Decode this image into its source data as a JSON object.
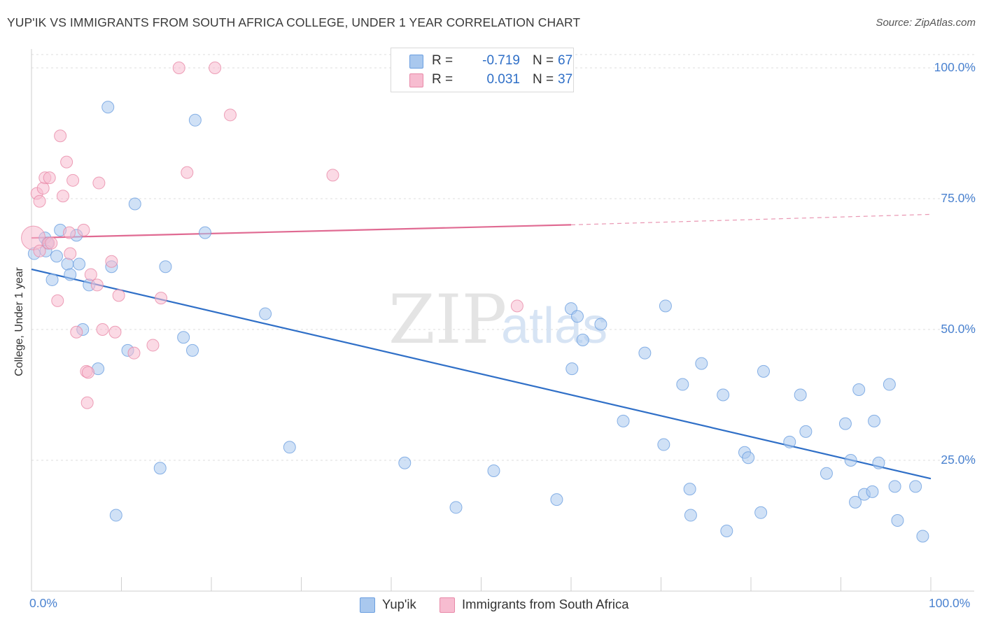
{
  "title": "YUP'IK VS IMMIGRANTS FROM SOUTH AFRICA COLLEGE, UNDER 1 YEAR CORRELATION CHART",
  "source": "Source: ZipAtlas.com",
  "watermark": {
    "zip": "ZIP",
    "atlas": "atlas"
  },
  "legend": {
    "rows": [
      {
        "label": "R =",
        "r": "-0.719",
        "n_label": "N =",
        "n": "67",
        "color": "#a9c8ee",
        "border": "#6b9fe0"
      },
      {
        "label": "R =",
        "r": "0.031",
        "n_label": "N =",
        "n": "37",
        "color": "#f7bcd0",
        "border": "#e889a8"
      }
    ]
  },
  "bottom_legend": [
    {
      "label": "Yup'ik",
      "color": "#a9c8ee",
      "border": "#6b9fe0"
    },
    {
      "label": "Immigrants from South Africa",
      "color": "#f7bcd0",
      "border": "#e889a8"
    }
  ],
  "chart_data": {
    "type": "scatter",
    "title": "YUP'IK VS IMMIGRANTS FROM SOUTH AFRICA COLLEGE, UNDER 1 YEAR CORRELATION CHART",
    "xlabel": "",
    "ylabel": "College, Under 1 year",
    "xlim": [
      0,
      100
    ],
    "ylim": [
      0,
      105
    ],
    "x_tick_labels": {
      "left": "0.0%",
      "right": "100.0%"
    },
    "y_ticks": [
      {
        "value": 100,
        "label": "100.0%"
      },
      {
        "value": 75,
        "label": "75.0%"
      },
      {
        "value": 50,
        "label": "50.0%"
      },
      {
        "value": 25,
        "label": "25.0%"
      }
    ],
    "grid": true,
    "series": [
      {
        "name": "Yup'ik",
        "color": "#a9c8ee",
        "stroke": "#6b9fe0",
        "trend": {
          "x0": 0,
          "y0": 61.5,
          "x1": 100,
          "y1": 21.5,
          "color": "#2f6fc7",
          "dashed_from": null
        },
        "points": [
          [
            0.3,
            64.5
          ],
          [
            1.5,
            67.5
          ],
          [
            1.8,
            66.5
          ],
          [
            1.6,
            65
          ],
          [
            2.3,
            59.5
          ],
          [
            2.8,
            64
          ],
          [
            3.2,
            69
          ],
          [
            4,
            62.5
          ],
          [
            4.3,
            60.5
          ],
          [
            5,
            68
          ],
          [
            5.3,
            62.5
          ],
          [
            5.7,
            50
          ],
          [
            6.4,
            58.5
          ],
          [
            7.4,
            42.5
          ],
          [
            8.5,
            92.5
          ],
          [
            8.9,
            62
          ],
          [
            9.4,
            14.5
          ],
          [
            10.7,
            46
          ],
          [
            11.5,
            74
          ],
          [
            14.3,
            23.5
          ],
          [
            14.9,
            62
          ],
          [
            16.9,
            48.5
          ],
          [
            17.9,
            46
          ],
          [
            18.2,
            90
          ],
          [
            19.3,
            68.5
          ],
          [
            26,
            53
          ],
          [
            28.7,
            27.5
          ],
          [
            41.5,
            24.5
          ],
          [
            47.2,
            16
          ],
          [
            51.4,
            23
          ],
          [
            58.4,
            17.5
          ],
          [
            60,
            54
          ],
          [
            60.1,
            42.5
          ],
          [
            60.7,
            52.5
          ],
          [
            61.3,
            48
          ],
          [
            63.3,
            51
          ],
          [
            65.8,
            32.5
          ],
          [
            68.2,
            45.5
          ],
          [
            70.3,
            28
          ],
          [
            70.5,
            54.5
          ],
          [
            72.4,
            39.5
          ],
          [
            73.2,
            19.5
          ],
          [
            73.3,
            14.5
          ],
          [
            74.5,
            43.5
          ],
          [
            76.9,
            37.5
          ],
          [
            77.3,
            11.5
          ],
          [
            79.3,
            26.5
          ],
          [
            79.7,
            25.5
          ],
          [
            81.1,
            15
          ],
          [
            81.4,
            42
          ],
          [
            84.3,
            28.5
          ],
          [
            85.5,
            37.5
          ],
          [
            86.1,
            30.5
          ],
          [
            88.4,
            22.5
          ],
          [
            90.5,
            32
          ],
          [
            91.1,
            25
          ],
          [
            91.6,
            17
          ],
          [
            92,
            38.5
          ],
          [
            92.6,
            18.5
          ],
          [
            93.5,
            19
          ],
          [
            93.7,
            32.5
          ],
          [
            94.2,
            24.5
          ],
          [
            95.4,
            39.5
          ],
          [
            96,
            20
          ],
          [
            96.3,
            13.5
          ],
          [
            98.3,
            20
          ],
          [
            99.1,
            10.5
          ]
        ]
      },
      {
        "name": "Immigrants from South Africa",
        "color": "#f7bcd0",
        "stroke": "#e889a8",
        "trend": {
          "x0": 0,
          "y0": 67.5,
          "x1": 60,
          "y1": 70,
          "x2": 100,
          "y2": 72,
          "color": "#e06a92",
          "dashed_from": 60
        },
        "points": [
          [
            0.2,
            67.5
          ],
          [
            0.6,
            76
          ],
          [
            0.9,
            74.5
          ],
          [
            1.3,
            77
          ],
          [
            1.5,
            79
          ],
          [
            1.9,
            66.5
          ],
          [
            2,
            79
          ],
          [
            2.2,
            66.5
          ],
          [
            2.9,
            55.5
          ],
          [
            3.2,
            87
          ],
          [
            3.5,
            75.5
          ],
          [
            3.9,
            82
          ],
          [
            4.2,
            68.5
          ],
          [
            4.3,
            64.5
          ],
          [
            4.6,
            78.5
          ],
          [
            5,
            49.5
          ],
          [
            5.8,
            69
          ],
          [
            6.1,
            42
          ],
          [
            6.2,
            36
          ],
          [
            6.6,
            60.5
          ],
          [
            7.3,
            58.5
          ],
          [
            7.5,
            78
          ],
          [
            7.9,
            50
          ],
          [
            8.9,
            63
          ],
          [
            9.3,
            49.5
          ],
          [
            9.7,
            56.5
          ],
          [
            11.4,
            45.5
          ],
          [
            13.5,
            47
          ],
          [
            14.4,
            56
          ],
          [
            16.4,
            100
          ],
          [
            17.3,
            80
          ],
          [
            20.4,
            100
          ],
          [
            22.1,
            91
          ],
          [
            33.5,
            79.5
          ],
          [
            54,
            54.5
          ],
          [
            0.9,
            65
          ],
          [
            6.3,
            41.8
          ]
        ]
      }
    ]
  }
}
